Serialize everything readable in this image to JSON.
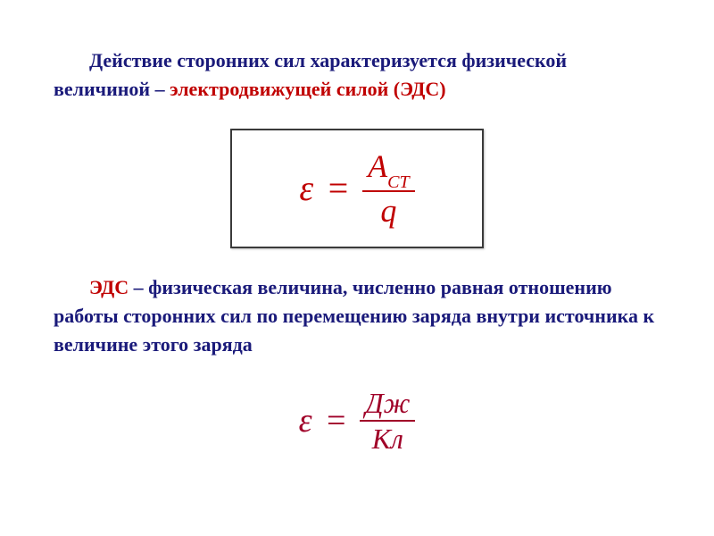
{
  "intro": {
    "line1_prefix": "Действие сторонних сил характеризуется физической величиной – ",
    "term": "электродвижущей силой (ЭДС)"
  },
  "formula": {
    "lhs": "ε",
    "eq": "=",
    "num_main": "A",
    "num_sub": "СТ",
    "den": "q"
  },
  "definition": {
    "term": "ЭДС",
    "rest": " – физическая величина, численно равная отношению работы сторонних сил по перемещению заряда внутри источника к величине этого заряда"
  },
  "units": {
    "lhs": "ε",
    "eq": "=",
    "num": "Дж",
    "den": "Кл"
  },
  "colors": {
    "text_blue": "#1a1a7a",
    "accent_red": "#c00000",
    "unit_red": "#a00028",
    "border": "#3a3a3a",
    "bg": "#ffffff"
  },
  "typography": {
    "body_fontsize": 22,
    "formula_fontsize": 40,
    "units_fontsize": 38,
    "font_family": "Times New Roman"
  }
}
